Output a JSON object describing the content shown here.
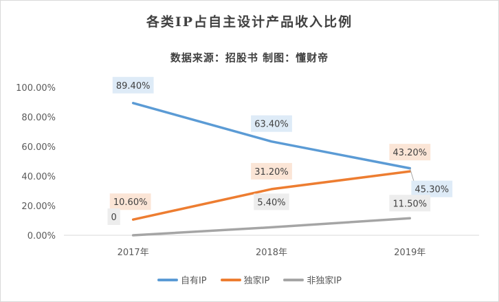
{
  "colors": {
    "series": [
      "#5b9bd5",
      "#ed7d31",
      "#a5a5a5"
    ],
    "label_bg": [
      "#deebf7",
      "#fbe5d6",
      "#ededed"
    ],
    "axis": "#d9d9d9",
    "text": "#595959"
  },
  "chart_data": {
    "type": "line",
    "title": "各类IP占自主设计产品收入比例",
    "subtitle": "数据来源：招股书 制图：懂财帝",
    "categories": [
      "2017年",
      "2018年",
      "2019年"
    ],
    "ylim": [
      0,
      100
    ],
    "yticks": [
      "0.00%",
      "20.00%",
      "40.00%",
      "60.00%",
      "80.00%",
      "100.00%"
    ],
    "grid": false,
    "legend_position": "bottom",
    "series": [
      {
        "name": "自有IP",
        "values": [
          89.4,
          63.4,
          45.3
        ],
        "labels": [
          "89.40%",
          "63.40%",
          "45.30%"
        ]
      },
      {
        "name": "独家IP",
        "values": [
          10.6,
          31.2,
          43.2
        ],
        "labels": [
          "10.60%",
          "31.20%",
          "43.20%"
        ]
      },
      {
        "name": "非独家IP",
        "values": [
          0,
          5.4,
          11.5
        ],
        "labels": [
          "0",
          "5.40%",
          "11.50%"
        ]
      }
    ]
  }
}
